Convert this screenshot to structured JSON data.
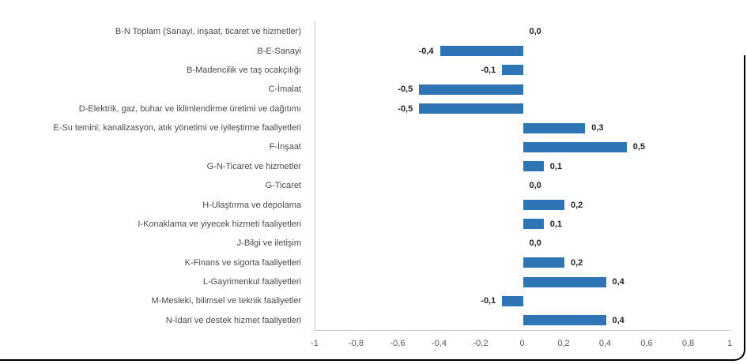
{
  "chart_data": {
    "type": "bar",
    "orientation": "horizontal",
    "title": "",
    "xlabel": "",
    "ylabel": "",
    "xlim": [
      -1,
      1
    ],
    "grid": false,
    "legend": "none",
    "categories": [
      "B-N Toplam (Sanayi, inşaat, ticaret ve hizmetler)",
      "B-E-Sanayi",
      "B-Madencilik ve taş ocakçılığı",
      "C-İmalat",
      "D-Elektrik, gaz, buhar ve iklimlendirme üretimi ve dağıtımı",
      "E-Su temini; kanalizasyon, atık yönetimi ve iyileştirme faaliyetleri",
      "F-İnşaat",
      "G-N-Ticaret ve hizmetler",
      "G-Ticaret",
      "H-Ulaştırma ve depolama",
      "I-Konaklama ve yiyecek hizmeti faaliyetleri",
      "J-Bilgi ve iletişim",
      "K-Finans ve sigorta faaliyetleri",
      "L-Gayrimenkul faaliyetleri",
      "M-Mesleki, bilimsel ve teknik faaliyetler",
      "N-İdari ve destek hizmet faaliyetleri"
    ],
    "values": [
      0.0,
      -0.4,
      -0.1,
      -0.5,
      -0.5,
      0.3,
      0.5,
      0.1,
      0.0,
      0.2,
      0.1,
      0.0,
      0.2,
      0.4,
      -0.1,
      0.4
    ],
    "value_labels": [
      "0,0",
      "-0,4",
      "-0,1",
      "-0,5",
      "-0,5",
      "0,3",
      "0,5",
      "0,1",
      "0,0",
      "0,2",
      "0,1",
      "0,0",
      "0,2",
      "0,4",
      "-0,1",
      "0,4"
    ],
    "x_ticks": [
      -1,
      -0.8,
      -0.6,
      -0.4,
      -0.2,
      0,
      0.2,
      0.4,
      0.6,
      0.8,
      1
    ],
    "x_tick_labels": [
      "-1",
      "-0,8",
      "-0,6",
      "-0,4",
      "-0,2",
      "0",
      "0,2",
      "0,4",
      "0,6",
      "0,8",
      "1"
    ]
  },
  "colors": {
    "bar": "#2E75B6",
    "axis_line": "#c9c9c9",
    "category_label": "#4b4b4b",
    "value_label": "#1f1f1f",
    "tick_label": "#595959",
    "frame_border": "#000000",
    "background": "#ffffff"
  }
}
